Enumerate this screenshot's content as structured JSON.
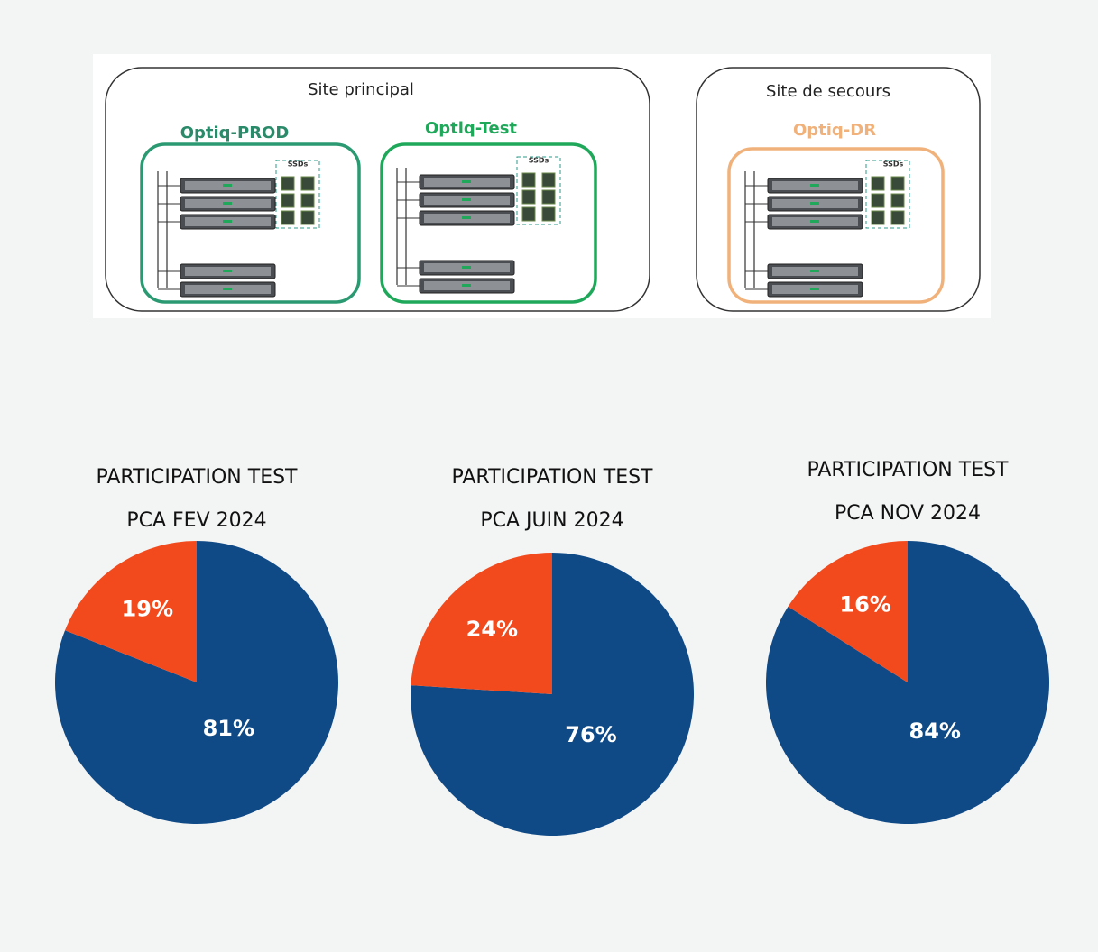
{
  "diagram": {
    "sites": [
      {
        "label": "Site principal"
      },
      {
        "label": "Site de secours"
      }
    ],
    "groups": [
      {
        "label": "Optiq-PROD",
        "ssd_label": "SSDs"
      },
      {
        "label": "Optiq-Test",
        "ssd_label": "SSDs"
      },
      {
        "label": "Optiq-DR",
        "ssd_label": "SSDs"
      }
    ]
  },
  "chart_data": [
    {
      "type": "pie",
      "title": "PARTICIPATION TEST",
      "subtitle": "PCA FEV 2024",
      "values": [
        81,
        19
      ],
      "value_labels": [
        "81%",
        "19%"
      ],
      "colors": [
        "#0f4a87",
        "#f24a1d"
      ]
    },
    {
      "type": "pie",
      "title": "PARTICIPATION TEST",
      "subtitle": "PCA JUIN 2024",
      "values": [
        76,
        24
      ],
      "value_labels": [
        "76%",
        "24%"
      ],
      "colors": [
        "#0f4a87",
        "#f24a1d"
      ]
    },
    {
      "type": "pie",
      "title": "PARTICIPATION TEST",
      "subtitle": "PCA NOV 2024",
      "values": [
        84,
        16
      ],
      "value_labels": [
        "84%",
        "16%"
      ],
      "colors": [
        "#0f4a87",
        "#f24a1d"
      ]
    }
  ]
}
